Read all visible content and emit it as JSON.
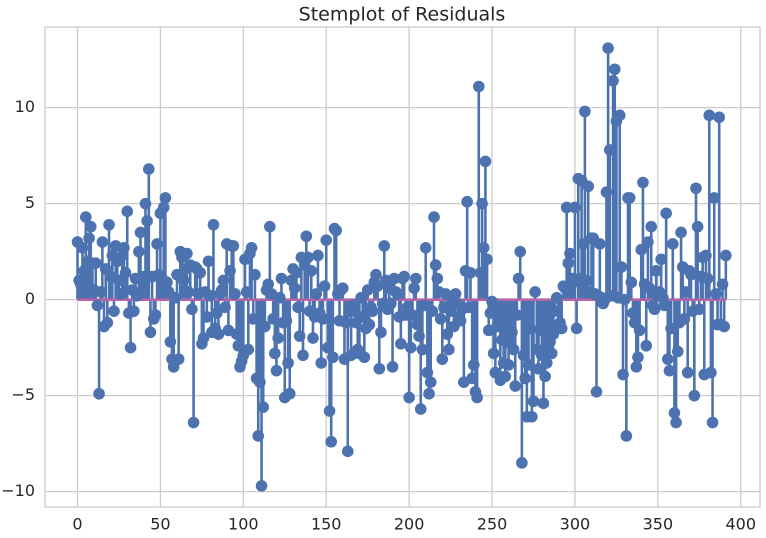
{
  "chart_data": {
    "type": "stem",
    "title": "Stemplot of Residuals",
    "color": "#4c72b0",
    "baseline_color": "#b464a8",
    "xlim": [
      -19.6,
      411.6
    ],
    "ylim": [
      -10.8,
      14.2
    ],
    "xticks": [
      0,
      50,
      100,
      150,
      200,
      250,
      300,
      350,
      400
    ],
    "yticks": [
      {
        "value": -10,
        "label": "−10"
      },
      {
        "value": -5,
        "label": "−5"
      },
      0,
      5,
      10
    ],
    "grid": true,
    "values": [
      3.0,
      1.0,
      0.8,
      2.7,
      1.5,
      4.3,
      2.0,
      3.2,
      3.8,
      1.9,
      0.5,
      1.9,
      -0.3,
      -4.9,
      0.4,
      3.0,
      -1.4,
      1.6,
      -1.2,
      3.9,
      1.2,
      2.3,
      -0.6,
      2.8,
      2.0,
      1.0,
      0.3,
      2.3,
      2.7,
      1.4,
      4.6,
      -0.7,
      -2.5,
      0.5,
      -0.6,
      1.1,
      0.2,
      2.5,
      3.5,
      1.2,
      0.8,
      5.0,
      4.1,
      6.8,
      -1.7,
      1.2,
      -1.0,
      -0.8,
      2.9,
      1.3,
      4.5,
      1.1,
      4.8,
      5.3,
      0.9,
      0.4,
      -2.2,
      -3.1,
      -3.5,
      0.1,
      1.3,
      -3.1,
      2.5,
      2.2,
      1.0,
      1.6,
      2.4,
      0.4,
      1.8,
      -0.5,
      -6.4,
      1.7,
      1.6,
      0.3,
      1.4,
      -2.3,
      -2.0,
      0.4,
      -0.9,
      2.0,
      0.2,
      -1.7,
      3.9,
      -1.5,
      -0.7,
      -1.8,
      0.3,
      0.5,
      1.0,
      -0.4,
      2.9,
      -1.6,
      1.5,
      2.8,
      2.8,
      0.3,
      -1.8,
      -2.4,
      -3.5,
      -3.2,
      -2.9,
      2.1,
      0.4,
      -2.6,
      2.4,
      2.7,
      -1.0,
      1.3,
      -4.1,
      -7.1,
      -4.3,
      -9.7,
      -5.6,
      -1.4,
      0.5,
      0.8,
      3.8,
      0.3,
      -1.0,
      -2.8,
      -3.7,
      -2.0,
      0.1,
      1.1,
      -1.2,
      -5.1,
      -1.1,
      -3.3,
      -4.9,
      1.0,
      1.6,
      0.6,
      1.4,
      -0.4,
      -1.9,
      2.2,
      -2.9,
      1.8,
      3.3,
      2.2,
      -0.6,
      1.5,
      -2.0,
      -0.9,
      0.3,
      2.3,
      -0.7,
      -3.3,
      -1.0,
      0.7,
      3.1,
      -2.5,
      -5.8,
      -7.4,
      -3.0,
      3.7,
      3.6,
      0.3,
      -1.1,
      0.5,
      0.6,
      -3.1,
      -1.2,
      -7.9,
      -0.6,
      -2.9,
      -0.3,
      -0.6,
      -1.2,
      -2.6,
      -2.8,
      0.1,
      -0.9,
      -3.0,
      -1.5,
      0.5,
      -1.3,
      -0.4,
      -0.6,
      0.9,
      1.3,
      0.7,
      -3.6,
      -1.7,
      -0.2,
      2.8,
      1.0,
      -0.5,
      0.6,
      -0.2,
      -3.5,
      1.1,
      0.4,
      0.3,
      -0.9,
      -2.3,
      1.1,
      1.2,
      -0.8,
      -0.4,
      -5.1,
      -2.5,
      -0.8,
      0.6,
      1.1,
      -1.3,
      -1.9,
      -5.7,
      -2.6,
      -0.3,
      2.7,
      -3.8,
      -4.9,
      -4.3,
      -0.6,
      4.3,
      1.8,
      1.1,
      0.4,
      -1.0,
      -3.1,
      -0.4,
      0.3,
      -1.8,
      -2.6,
      -0.6,
      0.1,
      -1.4,
      0.3,
      -0.2,
      -0.9,
      -1.1,
      -0.5,
      -4.3,
      1.5,
      5.1,
      -0.4,
      1.4,
      -4.1,
      -3.4,
      -4.8,
      -5.1,
      11.1,
      1.4,
      5.0,
      2.7,
      7.2,
      2.1,
      -1.6,
      -0.7,
      -0.1,
      -2.8,
      -3.8,
      -1.4,
      -1.2,
      -4.2,
      -2.1,
      -3.3,
      -4.0,
      -1.9,
      -3.4,
      -2.3,
      -1.7,
      -2.6,
      -4.5,
      -0.8,
      1.1,
      2.5,
      -8.5,
      -2.9,
      -4.1,
      -6.1,
      -3.4,
      -1.5,
      -6.1,
      -5.3,
      0.4,
      -2.6,
      -3.6,
      -1.6,
      -2.9,
      -5.4,
      -4.0,
      -3.3,
      -2.5,
      -2.2,
      -2.8,
      -1.8,
      -0.6,
      0.1,
      -1.3,
      -1.2,
      -1.5,
      0.7,
      0.6,
      4.8,
      1.9,
      2.4,
      0.8,
      1.1,
      4.8,
      -1.5,
      6.3,
      1.1,
      6.2,
      2.9,
      9.8,
      1.0,
      5.9,
      0.4,
      3.2,
      3.2,
      0.3,
      -4.8,
      0.2,
      2.9,
      0.1,
      -0.2,
      0.0,
      5.6,
      13.1,
      7.8,
      0.2,
      11.4,
      12.0,
      9.3,
      0.1,
      9.6,
      1.7,
      -3.9,
      0.0,
      -7.1,
      5.3,
      5.3,
      0.9,
      -0.7,
      -1.2,
      -3.5,
      -3.0,
      -1.6,
      2.6,
      6.1,
      0.8,
      -2.4,
      3.0,
      0.6,
      3.8,
      -0.3,
      -0.5,
      1.5,
      0.2,
      0.4,
      2.1,
      0.1,
      -0.3,
      4.5,
      -3.1,
      -3.7,
      -1.5,
      2.9,
      -5.9,
      -6.4,
      -2.7,
      -1.2,
      3.5,
      1.7,
      -1.0,
      0.4,
      -3.8,
      1.5,
      1.3,
      -0.6,
      -5.0,
      5.8,
      3.8,
      -0.5,
      1.2,
      2.2,
      -3.9,
      2.3,
      1.1,
      9.6,
      -3.8,
      -6.4,
      5.3,
      0.3,
      -1.3,
      9.5,
      -1.3,
      0.8,
      -1.4,
      2.3
    ]
  }
}
